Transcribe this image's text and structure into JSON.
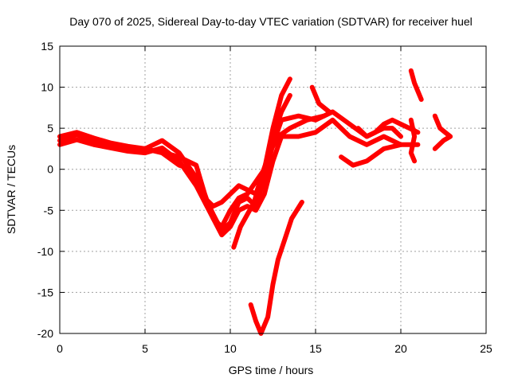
{
  "chart_data": {
    "type": "scatter",
    "title": "Day 070 of 2025, Sidereal Day-to-day VTEC variation (SDTVAR) for receiver huel",
    "xlabel": "GPS time / hours",
    "ylabel": "SDTVAR / TECUs",
    "xlim": [
      0,
      25
    ],
    "ylim": [
      -20,
      15
    ],
    "x_ticks": [
      0,
      5,
      10,
      15,
      20,
      25
    ],
    "y_ticks": [
      -20,
      -15,
      -10,
      -5,
      0,
      5,
      10,
      15
    ],
    "x_tick_labels": [
      "0",
      "5",
      "10",
      "15",
      "20",
      "25"
    ],
    "y_tick_labels": [
      "-20",
      "-15",
      "-10",
      "-5",
      "0",
      "5",
      "10",
      "15"
    ],
    "grid": true,
    "marker": "+",
    "color": "#ff0000",
    "series": [
      {
        "name": "track-1",
        "points": [
          [
            0,
            3.5
          ],
          [
            1,
            4.2
          ],
          [
            2,
            3.5
          ],
          [
            3,
            3.0
          ],
          [
            4,
            2.6
          ],
          [
            5,
            2.5
          ],
          [
            6,
            3.5
          ],
          [
            7,
            2.0
          ],
          [
            8,
            -1.0
          ],
          [
            9,
            -5.5
          ],
          [
            9.5,
            -7.5
          ],
          [
            10,
            -6.5
          ],
          [
            10.5,
            -4.0
          ],
          [
            11,
            -3.5
          ],
          [
            11.5,
            -4.5
          ],
          [
            12,
            -1.0
          ],
          [
            12.5,
            3.0
          ],
          [
            13,
            6.0
          ],
          [
            14,
            6.5
          ],
          [
            15,
            6.0
          ],
          [
            16,
            7.0
          ],
          [
            17,
            5.5
          ],
          [
            18,
            4.0
          ],
          [
            19,
            5.0
          ],
          [
            19.5,
            5.0
          ],
          [
            20,
            4.0
          ]
        ]
      },
      {
        "name": "track-2",
        "points": [
          [
            0,
            3.0
          ],
          [
            1,
            3.6
          ],
          [
            2,
            3.0
          ],
          [
            3,
            2.6
          ],
          [
            4,
            2.2
          ],
          [
            5,
            2.0
          ],
          [
            6,
            2.6
          ],
          [
            7,
            1.0
          ],
          [
            8,
            -2.0
          ],
          [
            9,
            -6.0
          ],
          [
            9.5,
            -8.0
          ],
          [
            10,
            -7.0
          ],
          [
            10.5,
            -5.0
          ],
          [
            11,
            -4.5
          ],
          [
            11.5,
            -5.0
          ],
          [
            12,
            -3.0
          ],
          [
            12.5,
            1.0
          ],
          [
            13,
            4.0
          ],
          [
            14,
            4.0
          ],
          [
            15,
            4.5
          ],
          [
            16,
            6.0
          ],
          [
            17,
            4.0
          ],
          [
            18,
            3.0
          ],
          [
            19,
            4.0
          ],
          [
            20,
            3.0
          ]
        ]
      },
      {
        "name": "track-3",
        "points": [
          [
            0,
            4.0
          ],
          [
            1,
            4.5
          ],
          [
            2,
            3.8
          ],
          [
            3,
            3.2
          ],
          [
            4,
            2.8
          ],
          [
            5,
            2.5
          ],
          [
            6,
            2.0
          ],
          [
            7,
            0.5
          ],
          [
            7.5,
            0.2
          ],
          [
            8,
            -1.5
          ],
          [
            8.5,
            -3.5
          ],
          [
            9,
            -4.5
          ],
          [
            9.5,
            -4.0
          ],
          [
            10,
            -3.0
          ],
          [
            10.5,
            -2.0
          ],
          [
            11,
            -2.5
          ],
          [
            11.5,
            -3.0
          ],
          [
            12,
            0.0
          ],
          [
            12.5,
            5.0
          ],
          [
            13,
            9.0
          ],
          [
            13.5,
            11.0
          ]
        ]
      },
      {
        "name": "track-4",
        "points": [
          [
            6.5,
            1.8
          ],
          [
            7,
            1.5
          ],
          [
            7.5,
            1.0
          ],
          [
            8,
            0.5
          ],
          [
            8.5,
            -3.0
          ],
          [
            9,
            -6.0
          ],
          [
            9.5,
            -7.0
          ],
          [
            10,
            -5.0
          ],
          [
            10.5,
            -3.5
          ],
          [
            11,
            -3.0
          ],
          [
            12,
            0.0
          ],
          [
            12.5,
            4.0
          ],
          [
            13,
            7.0
          ],
          [
            13.5,
            9.0
          ]
        ]
      },
      {
        "name": "track-5",
        "points": [
          [
            10.2,
            -9.5
          ],
          [
            10.6,
            -7.0
          ],
          [
            11,
            -5.5
          ],
          [
            11.4,
            -4.0
          ],
          [
            11.8,
            -1.0
          ],
          [
            12.3,
            2.0
          ],
          [
            12.8,
            4.0
          ],
          [
            13.5,
            5.0
          ],
          [
            14.5,
            6.0
          ],
          [
            15.5,
            6.5
          ]
        ]
      },
      {
        "name": "track-6",
        "points": [
          [
            11.2,
            -16.5
          ],
          [
            11.5,
            -18.5
          ],
          [
            11.8,
            -20.0
          ],
          [
            12.2,
            -18.0
          ],
          [
            12.5,
            -14.0
          ],
          [
            12.8,
            -11.0
          ],
          [
            13.2,
            -8.5
          ],
          [
            13.6,
            -6.0
          ],
          [
            14.2,
            -4.0
          ]
        ]
      },
      {
        "name": "track-7",
        "points": [
          [
            14.8,
            10.0
          ],
          [
            15.2,
            8.0
          ],
          [
            15.8,
            7.0
          ]
        ]
      },
      {
        "name": "track-8",
        "points": [
          [
            16.5,
            1.5
          ],
          [
            17.2,
            0.5
          ],
          [
            18,
            1.0
          ],
          [
            19,
            2.5
          ],
          [
            20,
            3.0
          ],
          [
            21,
            3.0
          ]
        ]
      },
      {
        "name": "track-9",
        "points": [
          [
            17.5,
            5.0
          ],
          [
            18,
            4.0
          ],
          [
            18.5,
            4.5
          ],
          [
            19,
            5.5
          ],
          [
            19.5,
            6.0
          ],
          [
            20,
            5.5
          ],
          [
            20.5,
            5.0
          ],
          [
            21,
            4.5
          ]
        ]
      },
      {
        "name": "track-10",
        "points": [
          [
            20.6,
            6.0
          ],
          [
            20.8,
            4.0
          ],
          [
            20.6,
            2.0
          ],
          [
            20.8,
            1.0
          ]
        ]
      },
      {
        "name": "track-11",
        "points": [
          [
            20.6,
            12.0
          ],
          [
            20.8,
            10.5
          ],
          [
            21,
            9.5
          ],
          [
            21.2,
            8.5
          ]
        ]
      },
      {
        "name": "track-12",
        "points": [
          [
            22,
            6.5
          ],
          [
            22.3,
            5.0
          ],
          [
            22.6,
            4.5
          ],
          [
            22.9,
            4.0
          ],
          [
            22.5,
            3.5
          ],
          [
            22.0,
            2.5
          ]
        ]
      }
    ]
  }
}
